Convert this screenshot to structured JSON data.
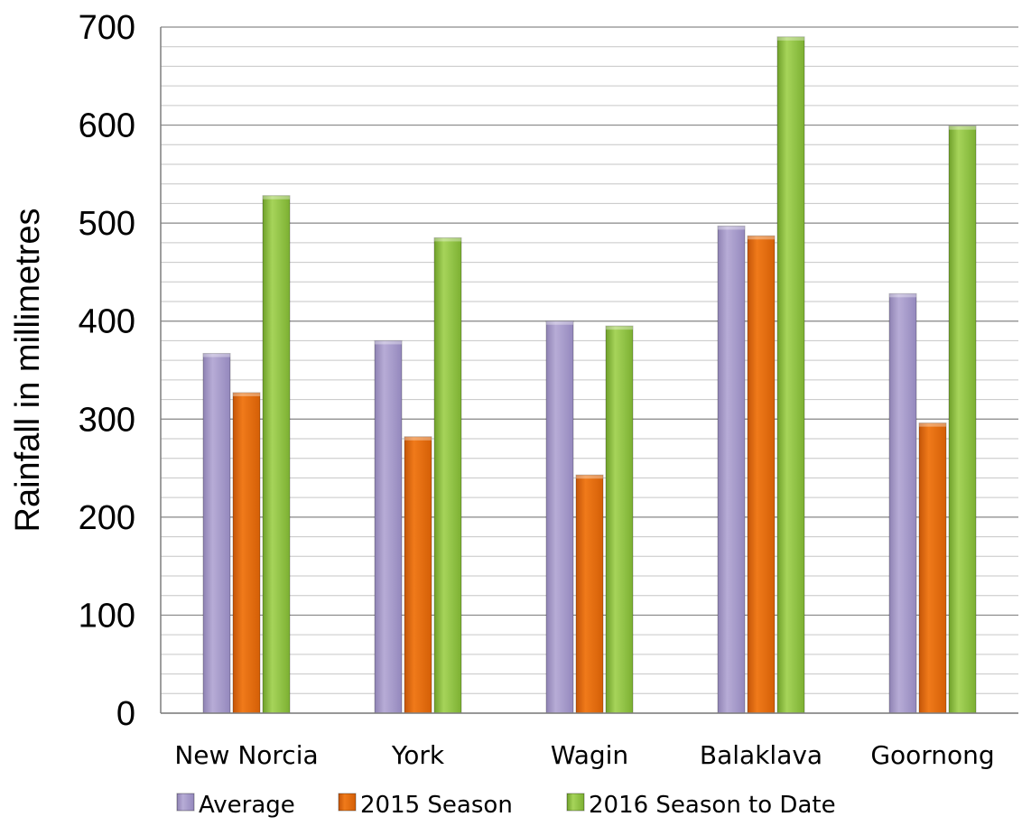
{
  "chart_data": {
    "type": "bar",
    "title": "",
    "xlabel": "",
    "ylabel": "Rainfall in millimetres",
    "categories": [
      "New Norcia",
      "York",
      "Wagin",
      "Balaklava",
      "Goornong"
    ],
    "series": [
      {
        "name": "Average",
        "color": "#a89cc8",
        "values": [
          367,
          380,
          400,
          497,
          428
        ]
      },
      {
        "name": "2015 Season",
        "color": "#e36c09",
        "values": [
          327,
          282,
          243,
          487,
          296
        ]
      },
      {
        "name": "2016 Season to Date",
        "color": "#8cbd3a",
        "values": [
          528,
          485,
          395,
          690,
          599
        ]
      }
    ],
    "ylim": [
      0,
      700
    ],
    "y_ticks": [
      0,
      100,
      200,
      300,
      400,
      500,
      600,
      700
    ],
    "y_ticks_text": [
      "0",
      "100",
      "200",
      "300",
      "400",
      "500",
      "600",
      "700"
    ],
    "minor_grid_step": 20,
    "grid": true,
    "legend_position": "bottom"
  }
}
